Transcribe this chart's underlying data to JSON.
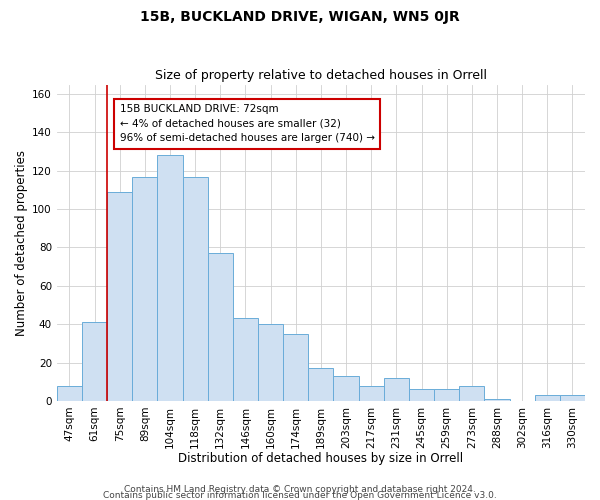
{
  "title": "15B, BUCKLAND DRIVE, WIGAN, WN5 0JR",
  "subtitle": "Size of property relative to detached houses in Orrell",
  "xlabel": "Distribution of detached houses by size in Orrell",
  "ylabel": "Number of detached properties",
  "bar_labels": [
    "47sqm",
    "61sqm",
    "75sqm",
    "89sqm",
    "104sqm",
    "118sqm",
    "132sqm",
    "146sqm",
    "160sqm",
    "174sqm",
    "189sqm",
    "203sqm",
    "217sqm",
    "231sqm",
    "245sqm",
    "259sqm",
    "273sqm",
    "288sqm",
    "302sqm",
    "316sqm",
    "330sqm"
  ],
  "bar_values": [
    8,
    41,
    109,
    117,
    128,
    117,
    77,
    43,
    40,
    35,
    17,
    13,
    8,
    12,
    6,
    6,
    8,
    1,
    0,
    3,
    3
  ],
  "bar_color": "#cfe0f2",
  "bar_edge_color": "#6aacd9",
  "vline_color": "#cc0000",
  "ylim": [
    0,
    165
  ],
  "yticks": [
    0,
    20,
    40,
    60,
    80,
    100,
    120,
    140,
    160
  ],
  "annotation_title": "15B BUCKLAND DRIVE: 72sqm",
  "annotation_line1": "← 4% of detached houses are smaller (32)",
  "annotation_line2": "96% of semi-detached houses are larger (740) →",
  "annotation_box_color": "#ffffff",
  "annotation_box_edge": "#cc0000",
  "footer1": "Contains HM Land Registry data © Crown copyright and database right 2024.",
  "footer2": "Contains public sector information licensed under the Open Government Licence v3.0.",
  "bg_color": "#ffffff",
  "grid_color": "#d0d0d0",
  "title_fontsize": 10,
  "subtitle_fontsize": 9,
  "axis_label_fontsize": 8.5,
  "tick_fontsize": 7.5,
  "footer_fontsize": 6.5
}
